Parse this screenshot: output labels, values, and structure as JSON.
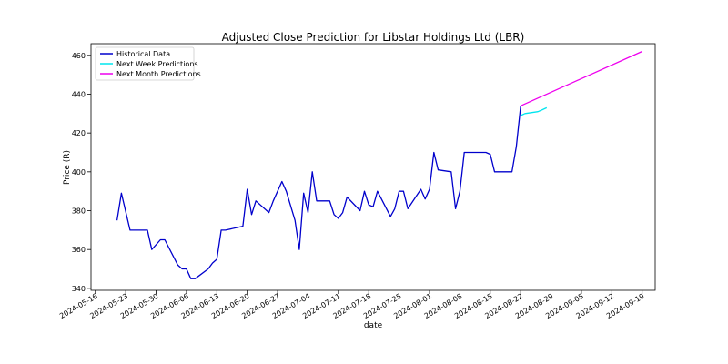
{
  "chart_data": {
    "type": "line",
    "title": "Adjusted Close Prediction for Libstar Holdings Ltd (LBR)",
    "xlabel": "date",
    "ylabel": "Price (R)",
    "ylim": [
      339,
      466
    ],
    "xlim": [
      "2024-05-15",
      "2024-09-22"
    ],
    "x_ticks": [
      "2024-05-16",
      "2024-05-23",
      "2024-05-30",
      "2024-06-06",
      "2024-06-13",
      "2024-06-20",
      "2024-06-27",
      "2024-07-04",
      "2024-07-11",
      "2024-07-18",
      "2024-07-25",
      "2024-08-01",
      "2024-08-08",
      "2024-08-15",
      "2024-08-22",
      "2024-08-29",
      "2024-09-05",
      "2024-09-12",
      "2024-09-19"
    ],
    "y_ticks": [
      340,
      360,
      380,
      400,
      420,
      440,
      460
    ],
    "legend_position": "top-left",
    "series": [
      {
        "name": "Historical Data",
        "color": "#0000cc",
        "points": [
          [
            "2024-05-21",
            375
          ],
          [
            "2024-05-22",
            389
          ],
          [
            "2024-05-24",
            370
          ],
          [
            "2024-05-27",
            370
          ],
          [
            "2024-05-28",
            370
          ],
          [
            "2024-05-29",
            360
          ],
          [
            "2024-05-31",
            365
          ],
          [
            "2024-06-01",
            365
          ],
          [
            "2024-06-04",
            352
          ],
          [
            "2024-06-05",
            350
          ],
          [
            "2024-06-06",
            350
          ],
          [
            "2024-06-07",
            345
          ],
          [
            "2024-06-08",
            345
          ],
          [
            "2024-06-11",
            350
          ],
          [
            "2024-06-12",
            353
          ],
          [
            "2024-06-13",
            355
          ],
          [
            "2024-06-14",
            370
          ],
          [
            "2024-06-15",
            370
          ],
          [
            "2024-06-19",
            372
          ],
          [
            "2024-06-20",
            391
          ],
          [
            "2024-06-21",
            378
          ],
          [
            "2024-06-22",
            385
          ],
          [
            "2024-06-25",
            379
          ],
          [
            "2024-06-26",
            385
          ],
          [
            "2024-06-28",
            395
          ],
          [
            "2024-06-29",
            390
          ],
          [
            "2024-07-01",
            375
          ],
          [
            "2024-07-02",
            360
          ],
          [
            "2024-07-03",
            389
          ],
          [
            "2024-07-04",
            379
          ],
          [
            "2024-07-05",
            400
          ],
          [
            "2024-07-06",
            385
          ],
          [
            "2024-07-09",
            385
          ],
          [
            "2024-07-10",
            378
          ],
          [
            "2024-07-11",
            376
          ],
          [
            "2024-07-12",
            379
          ],
          [
            "2024-07-13",
            387
          ],
          [
            "2024-07-16",
            380
          ],
          [
            "2024-07-17",
            390
          ],
          [
            "2024-07-18",
            383
          ],
          [
            "2024-07-19",
            382
          ],
          [
            "2024-07-20",
            390
          ],
          [
            "2024-07-23",
            377
          ],
          [
            "2024-07-24",
            381
          ],
          [
            "2024-07-25",
            390
          ],
          [
            "2024-07-26",
            390
          ],
          [
            "2024-07-27",
            381
          ],
          [
            "2024-07-30",
            391
          ],
          [
            "2024-07-31",
            386
          ],
          [
            "2024-08-01",
            391
          ],
          [
            "2024-08-02",
            410
          ],
          [
            "2024-08-03",
            401
          ],
          [
            "2024-08-06",
            400
          ],
          [
            "2024-08-07",
            381
          ],
          [
            "2024-08-08",
            390
          ],
          [
            "2024-08-09",
            410
          ],
          [
            "2024-08-14",
            410
          ],
          [
            "2024-08-15",
            409
          ],
          [
            "2024-08-16",
            400
          ],
          [
            "2024-08-20",
            400
          ],
          [
            "2024-08-21",
            413
          ],
          [
            "2024-08-22",
            434
          ]
        ]
      },
      {
        "name": "Next Week Predictions",
        "color": "#00e5ee",
        "points": [
          [
            "2024-08-22",
            429
          ],
          [
            "2024-08-23",
            430
          ],
          [
            "2024-08-26",
            431
          ],
          [
            "2024-08-27",
            432
          ],
          [
            "2024-08-28",
            433
          ]
        ]
      },
      {
        "name": "Next Month Predictions",
        "color": "#ee00ee",
        "points": [
          [
            "2024-08-22",
            434
          ],
          [
            "2024-09-19",
            462
          ]
        ]
      }
    ]
  }
}
